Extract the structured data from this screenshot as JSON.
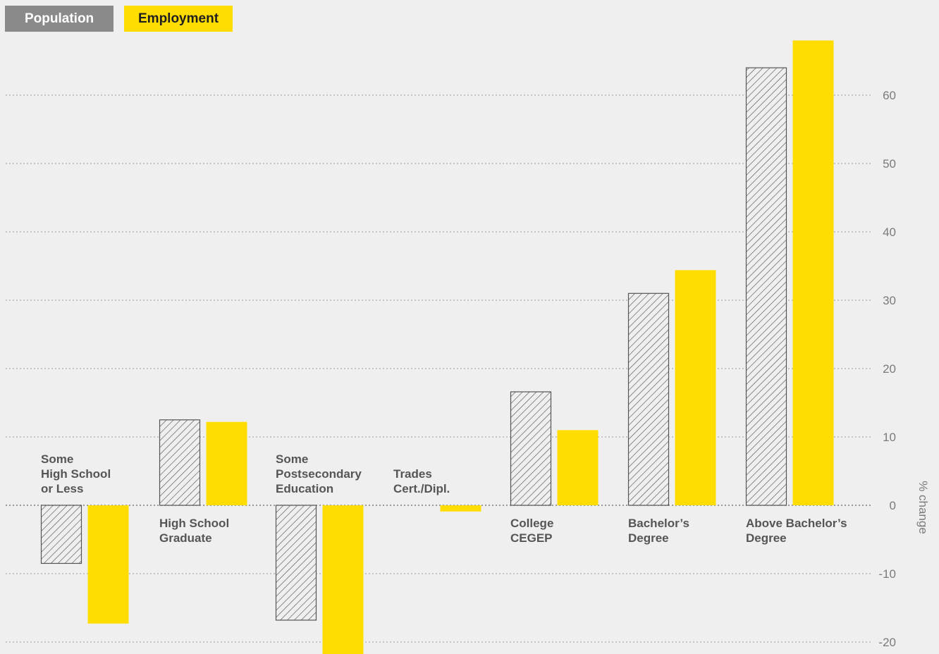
{
  "legend": {
    "population": "Population",
    "employment": "Employment"
  },
  "colors": {
    "background": "#efefef",
    "population_stroke": "#555555",
    "employment": "#ffdd00",
    "gridline": "#9a9a9a",
    "tick_text": "#7a7a7a",
    "category_text": "#555555"
  },
  "chart_data": {
    "type": "bar",
    "ylabel": "% change",
    "ylim": [
      -21.5,
      68
    ],
    "yticks": [
      60,
      50,
      40,
      30,
      20,
      10,
      0,
      -10,
      -20
    ],
    "grid": true,
    "legend_position": "top-left",
    "categories": [
      [
        "Some",
        "High School",
        "or Less"
      ],
      [
        "High School",
        "Graduate"
      ],
      [
        "Some",
        "Postsecondary",
        "Education"
      ],
      [
        "Trades",
        "Cert./Dipl."
      ],
      [
        "College",
        "CEGEP"
      ],
      [
        "Bachelor’s",
        "Degree"
      ],
      [
        "Above Bachelor’s",
        "Degree"
      ]
    ],
    "series": [
      {
        "name": "Population",
        "style": "hatched",
        "values": [
          -8.5,
          12.5,
          -16.8,
          0,
          16.6,
          31,
          64
        ]
      },
      {
        "name": "Employment",
        "style": "solid",
        "values": [
          -17.3,
          12.2,
          -22,
          -0.9,
          11,
          34.4,
          68
        ]
      }
    ]
  }
}
